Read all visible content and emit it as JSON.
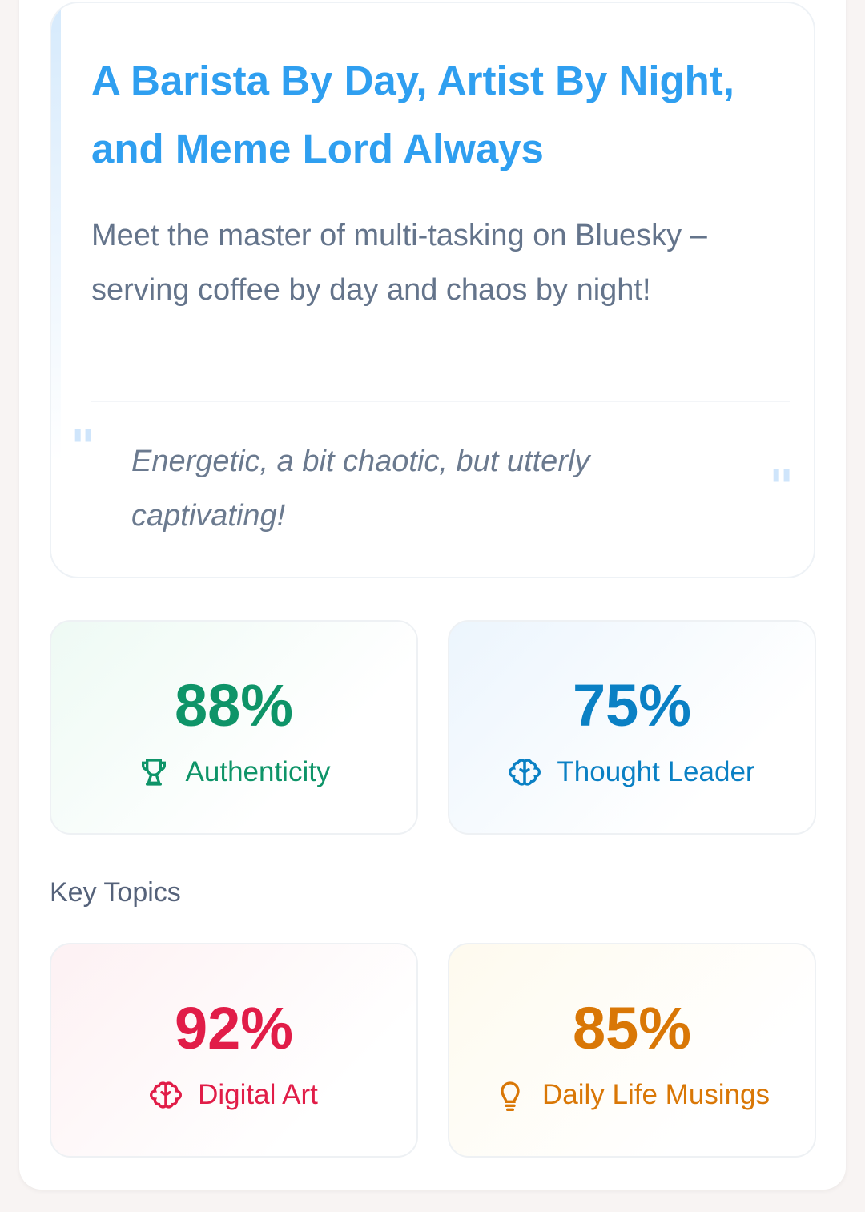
{
  "profile": {
    "title": "A Barista By Day, Artist By Night, and Meme Lord Always",
    "description": "Meet the master of multi-tasking on Bluesky – serving coffee by day and chaos by night!",
    "quote": "Energetic, a bit chaotic, but utterly captivating!"
  },
  "stats": [
    {
      "value": "88%",
      "label": "Authenticity",
      "icon": "trophy-icon",
      "color": "#0e9468"
    },
    {
      "value": "75%",
      "label": "Thought Leader",
      "icon": "brain-icon",
      "color": "#0a80c4"
    }
  ],
  "key_topics": {
    "heading": "Key Topics",
    "items": [
      {
        "value": "92%",
        "label": "Digital Art",
        "icon": "brain-icon",
        "color": "#e11d48"
      },
      {
        "value": "85%",
        "label": "Daily Life Musings",
        "icon": "lightbulb-icon",
        "color": "#d97706"
      }
    ]
  }
}
